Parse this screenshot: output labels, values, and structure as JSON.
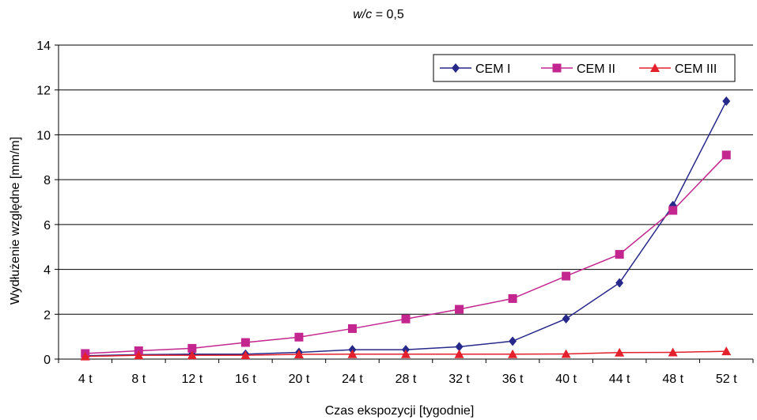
{
  "chart_data": {
    "type": "line",
    "title": {
      "variable": "w/c",
      "rest": " = 0,5"
    },
    "xlabel": "Czas ekspozycji [tygodnie]",
    "ylabel": "Wydłużenie względne [mm/m]",
    "categories": [
      "4 t",
      "8 t",
      "12 t",
      "16 t",
      "20 t",
      "24 t",
      "28 t",
      "32 t",
      "36 t",
      "40 t",
      "44 t",
      "48 t",
      "52 t"
    ],
    "ylim": [
      0,
      14
    ],
    "yticks": [
      0,
      2,
      4,
      6,
      8,
      10,
      12,
      14
    ],
    "grid": true,
    "legend_position": "top-right",
    "series": [
      {
        "name": "CEM I",
        "color": "#27298a",
        "marker": "diamond",
        "values": [
          0.15,
          0.2,
          0.22,
          0.22,
          0.3,
          0.42,
          0.42,
          0.55,
          0.8,
          1.8,
          3.4,
          6.85,
          11.5
        ]
      },
      {
        "name": "CEM II",
        "color": "#c3278f",
        "marker": "square",
        "values": [
          0.25,
          0.37,
          0.48,
          0.74,
          0.98,
          1.36,
          1.79,
          2.22,
          2.7,
          3.7,
          4.67,
          6.63,
          9.1
        ]
      },
      {
        "name": "CEM III",
        "color": "#e3202b",
        "marker": "triangle",
        "values": [
          0.12,
          0.17,
          0.17,
          0.17,
          0.21,
          0.22,
          0.22,
          0.22,
          0.22,
          0.23,
          0.29,
          0.3,
          0.35
        ]
      }
    ]
  }
}
